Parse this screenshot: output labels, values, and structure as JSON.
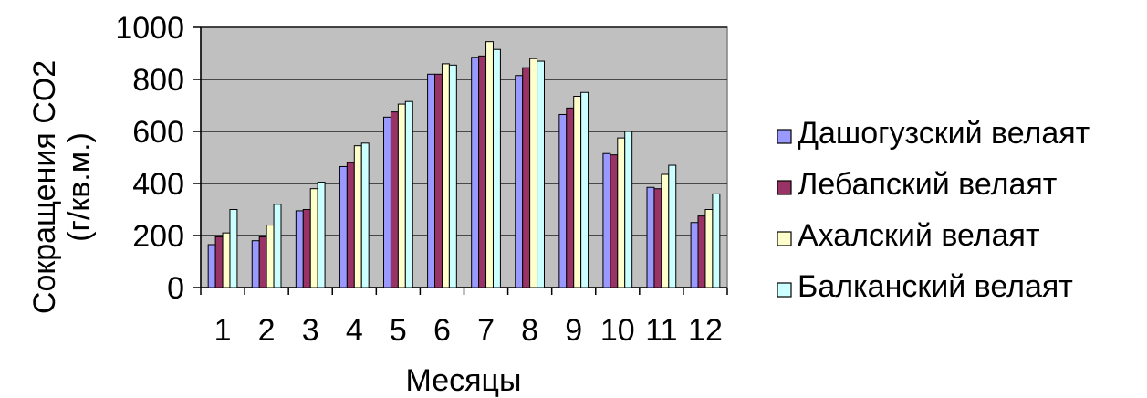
{
  "chart_data": {
    "type": "bar",
    "title": "",
    "xlabel": "Месяцы",
    "ylabel_lines": [
      "Сокращения CO2",
      "(г/кв.м.)"
    ],
    "categories": [
      "1",
      "2",
      "3",
      "4",
      "5",
      "6",
      "7",
      "8",
      "9",
      "10",
      "11",
      "12"
    ],
    "ylim": [
      0,
      1000
    ],
    "yticks": [
      0,
      200,
      400,
      600,
      800,
      1000
    ],
    "grid": true,
    "legend_position": "right",
    "plot_background": "#c0c0c0",
    "series": [
      {
        "name": "Дашогузский велаят",
        "color": "#9999ff",
        "values": [
          165,
          180,
          295,
          465,
          655,
          820,
          885,
          815,
          665,
          515,
          385,
          250
        ]
      },
      {
        "name": "Лебапский велаят",
        "color": "#993366",
        "values": [
          195,
          195,
          300,
          480,
          675,
          820,
          890,
          845,
          690,
          510,
          380,
          275
        ]
      },
      {
        "name": "Ахалский велаят",
        "color": "#ffffcc",
        "values": [
          210,
          240,
          380,
          545,
          705,
          860,
          945,
          880,
          735,
          575,
          435,
          300
        ]
      },
      {
        "name": "Балканский велаят",
        "color": "#ccffff",
        "values": [
          300,
          320,
          405,
          555,
          715,
          855,
          915,
          870,
          750,
          600,
          470,
          360
        ]
      }
    ]
  }
}
